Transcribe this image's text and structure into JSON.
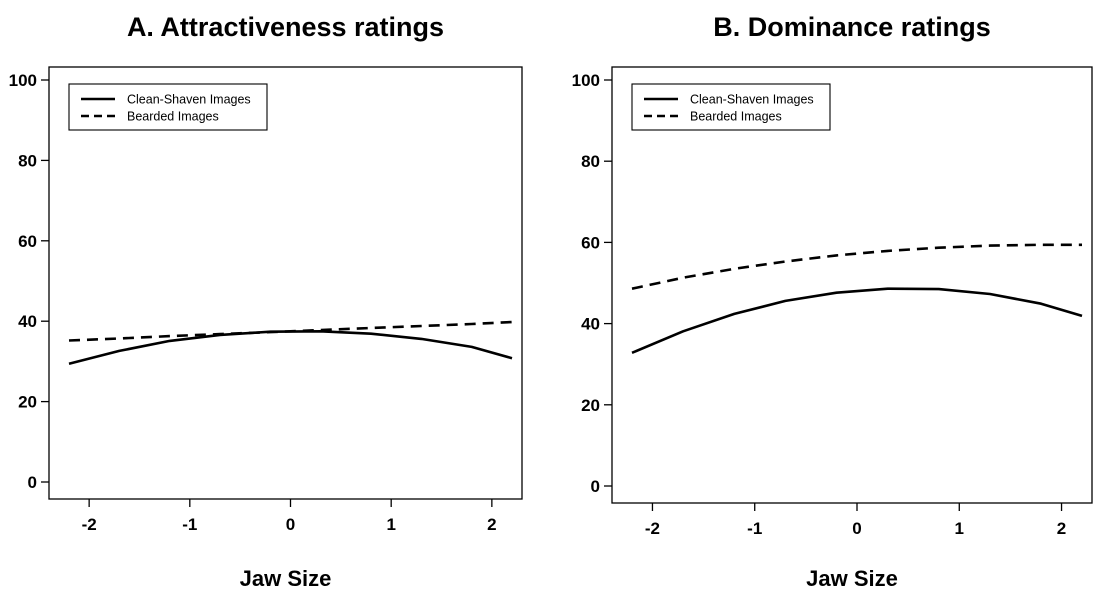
{
  "chart_data": [
    {
      "type": "line",
      "title": "A. Attractiveness ratings",
      "xlabel": "Jaw Size",
      "ylabel": "",
      "xlim": [
        -2.2,
        2.2
      ],
      "ylim": [
        0,
        100
      ],
      "xticks": [
        -2,
        -1,
        0,
        1,
        2
      ],
      "yticks": [
        0,
        20,
        40,
        60,
        80,
        100
      ],
      "xtick_labels": [
        "-2",
        "-1",
        "0",
        "1",
        "2"
      ],
      "ytick_labels": [
        "0",
        "20",
        "40",
        "60",
        "80",
        "100"
      ],
      "legend_position": "top-left",
      "grid": false,
      "x": [
        -2.2,
        -1.7,
        -1.2,
        -0.7,
        -0.2,
        0.3,
        0.8,
        1.3,
        1.8,
        2.2
      ],
      "series": [
        {
          "name": "Clean-Shaven Images",
          "style": "solid",
          "values": [
            29.4,
            32.6,
            35.1,
            36.6,
            37.4,
            37.5,
            36.9,
            35.6,
            33.6,
            30.8
          ]
        },
        {
          "name": "Bearded Images",
          "style": "dashed",
          "values": [
            35.2,
            35.7,
            36.3,
            36.8,
            37.3,
            37.8,
            38.3,
            38.8,
            39.3,
            39.8
          ]
        }
      ]
    },
    {
      "type": "line",
      "title": "B. Dominance ratings",
      "xlabel": "Jaw Size",
      "ylabel": "",
      "xlim": [
        -2.2,
        2.2
      ],
      "ylim": [
        0,
        100
      ],
      "xticks": [
        -2,
        -1,
        0,
        1,
        2
      ],
      "yticks": [
        0,
        20,
        40,
        60,
        80,
        100
      ],
      "xtick_labels": [
        "-2",
        "-1",
        "0",
        "1",
        "2"
      ],
      "ytick_labels": [
        "0",
        "20",
        "40",
        "60",
        "80",
        "100"
      ],
      "legend_position": "top-left",
      "grid": false,
      "x": [
        -2.2,
        -1.7,
        -1.2,
        -0.7,
        -0.2,
        0.3,
        0.8,
        1.3,
        1.8,
        2.2
      ],
      "series": [
        {
          "name": "Clean-Shaven Images",
          "style": "solid",
          "values": [
            32.8,
            38.1,
            42.4,
            45.6,
            47.6,
            48.6,
            48.5,
            47.3,
            44.9,
            41.9
          ]
        },
        {
          "name": "Bearded Images",
          "style": "dashed",
          "values": [
            48.6,
            51.3,
            53.5,
            55.3,
            56.8,
            57.9,
            58.7,
            59.2,
            59.4,
            59.4
          ]
        }
      ]
    }
  ],
  "colors": {
    "line": "#000000",
    "background": "#ffffff"
  }
}
